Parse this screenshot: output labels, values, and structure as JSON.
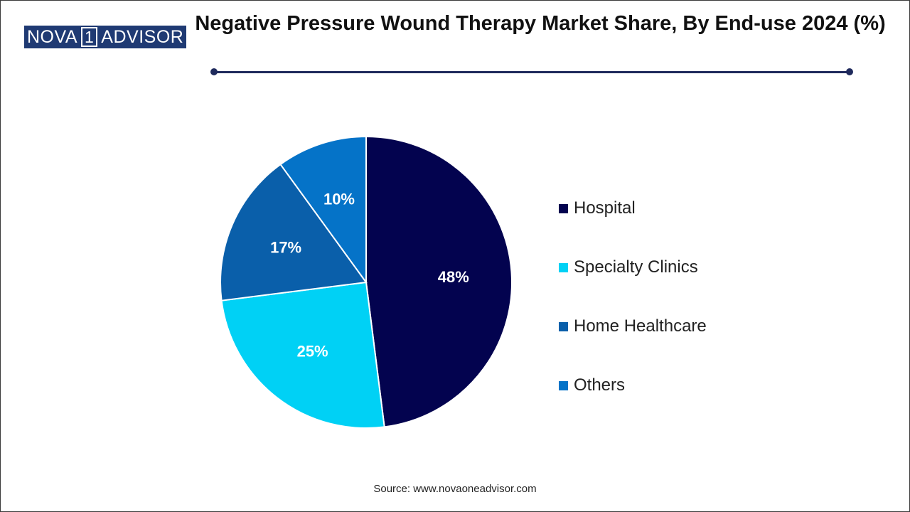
{
  "brand": {
    "left": "NOVA",
    "mid": "1",
    "right": "ADVISOR"
  },
  "source": "Source: www.novaoneadvisor.com",
  "chart_data": {
    "type": "pie",
    "title": "Negative Pressure Wound Therapy Market Share, By End-use 2024 (%)",
    "categories": [
      "Hospital",
      "Specialty Clinics",
      "Home Healthcare",
      "Others"
    ],
    "values": [
      48,
      25,
      17,
      10
    ],
    "labels": [
      "48%",
      "25%",
      "17%",
      "10%"
    ],
    "colors": [
      "#03034f",
      "#00d1f5",
      "#0a5faa",
      "#0573c8"
    ],
    "legend_position": "right"
  }
}
